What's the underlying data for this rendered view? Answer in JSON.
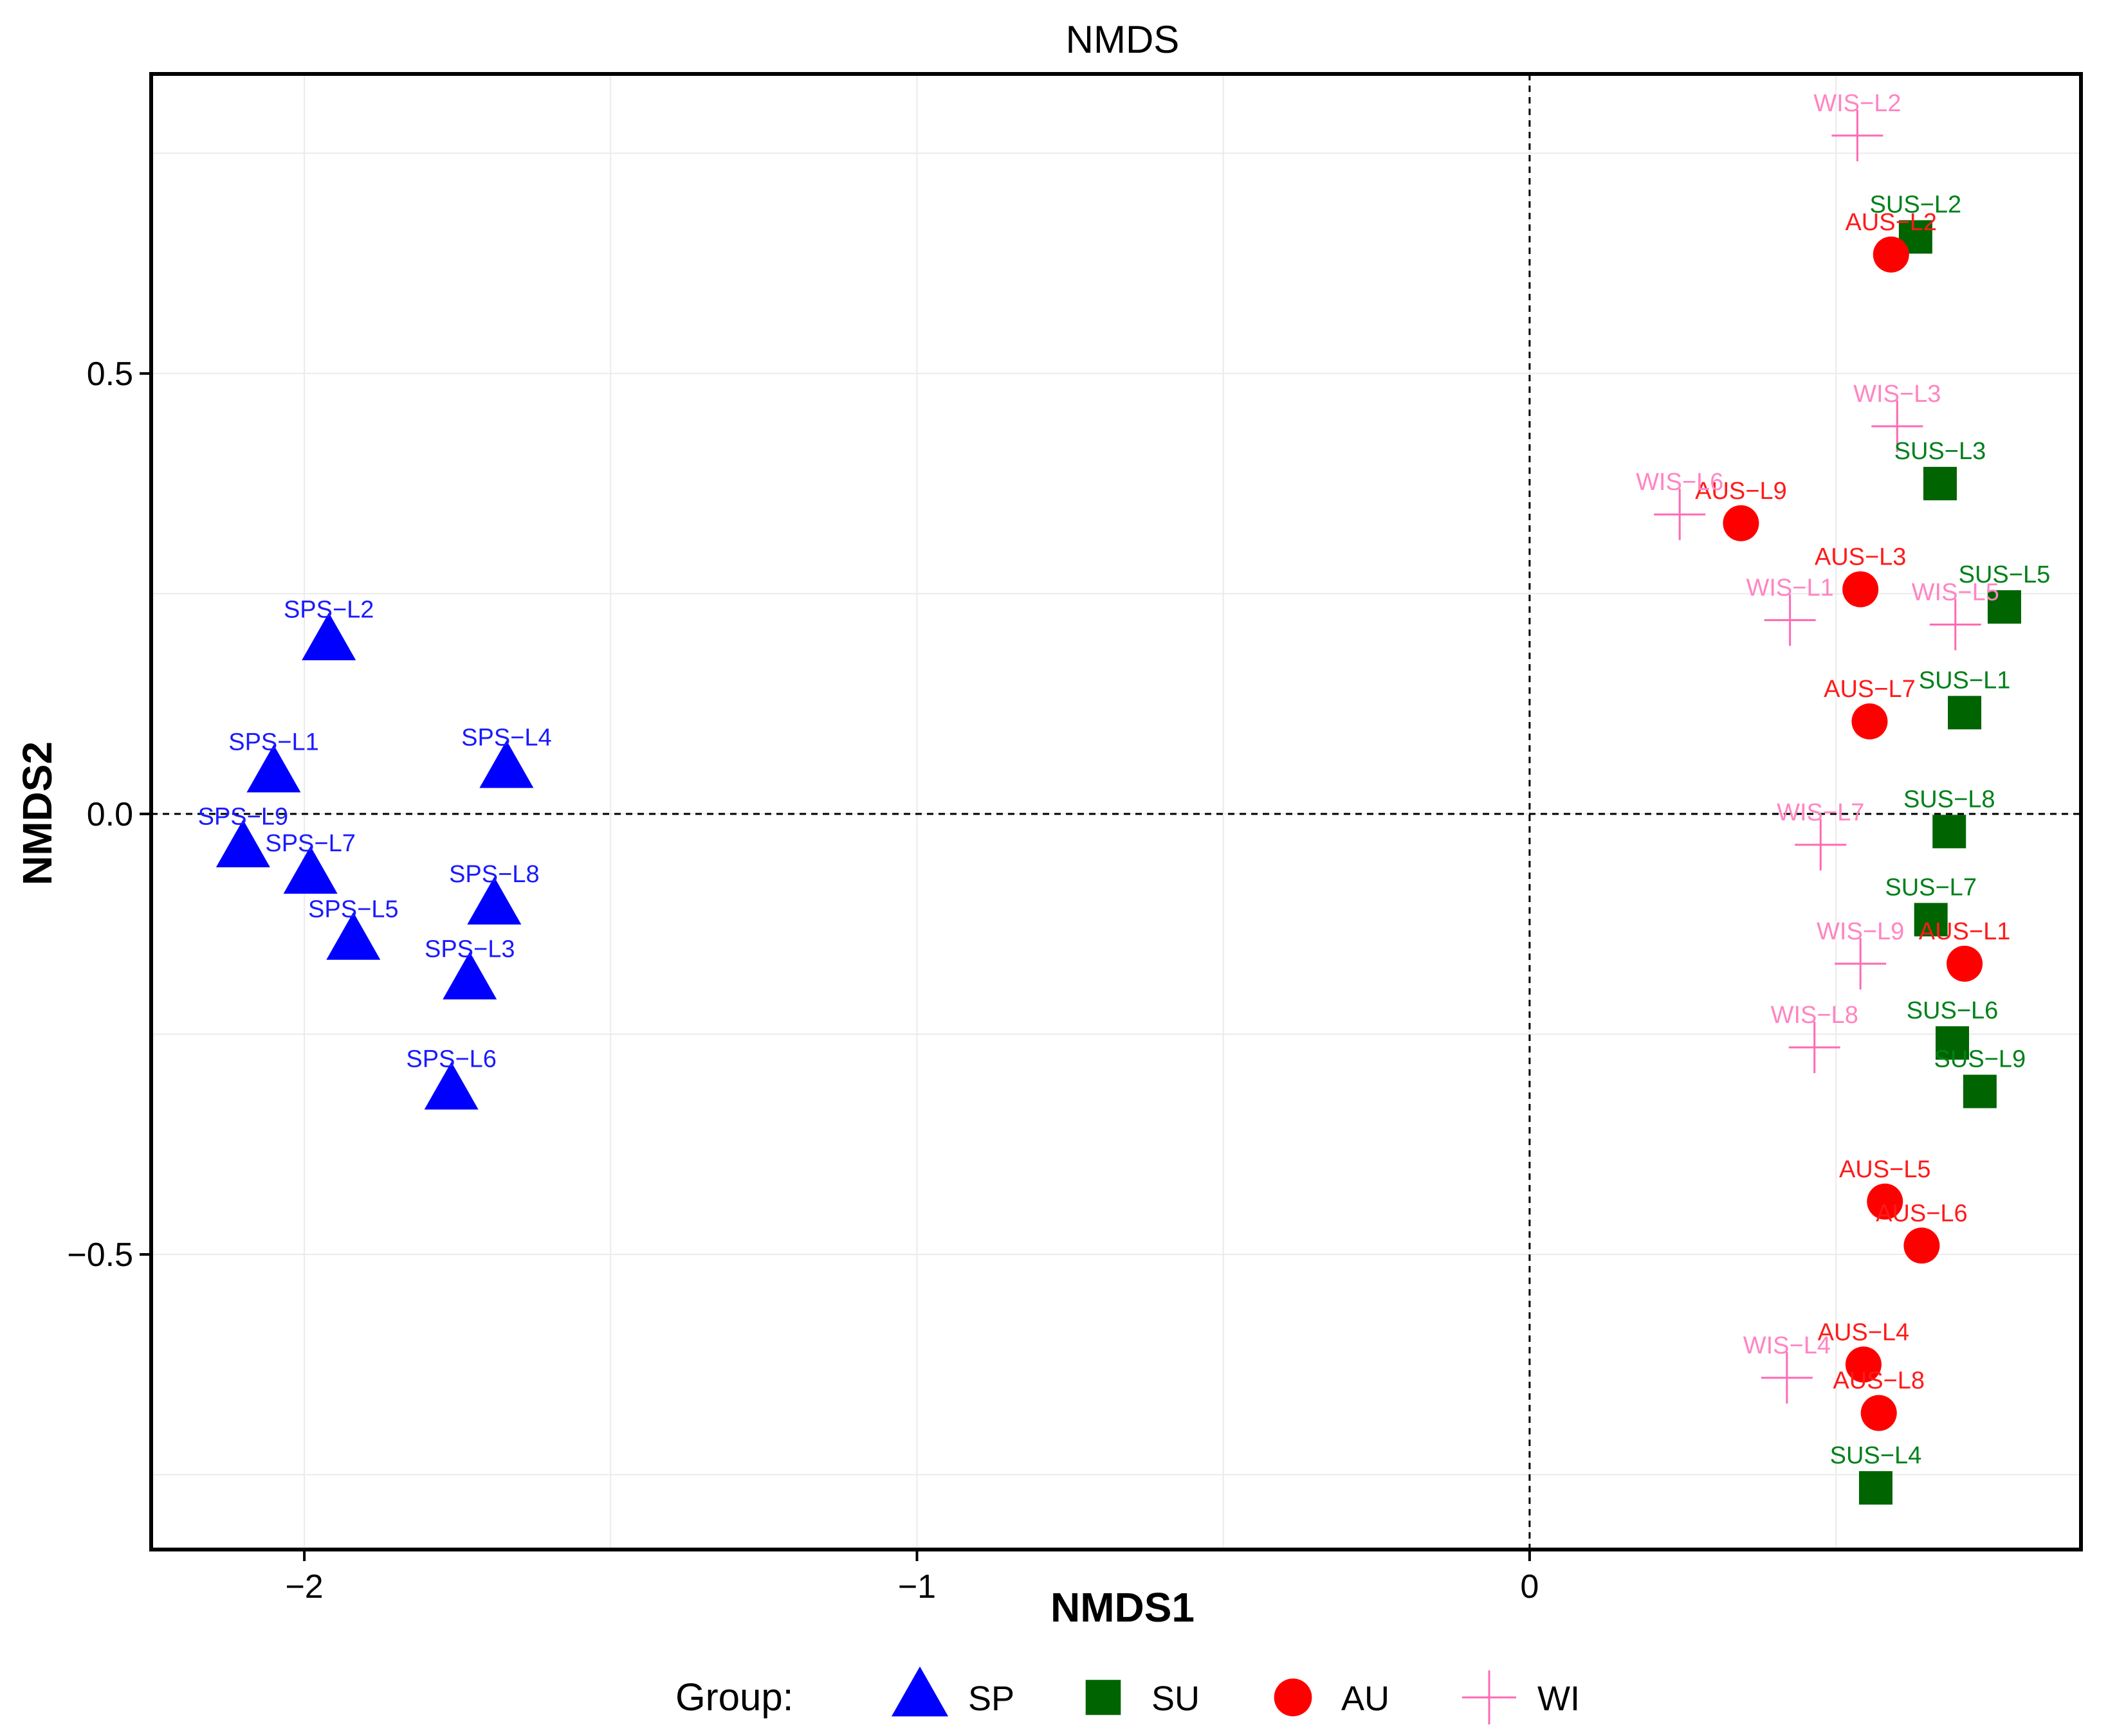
{
  "chart_data": {
    "type": "scatter",
    "title": "NMDS",
    "xlabel": "NMDS1",
    "ylabel": "NMDS2",
    "xlim": [
      -2.25,
      0.9
    ],
    "ylim": [
      -0.835,
      0.84
    ],
    "xticks": [
      -2,
      -1,
      0
    ],
    "yticks": [
      -0.5,
      0.0,
      0.5
    ],
    "xtick_labels": [
      "−2",
      "−1",
      "0"
    ],
    "ytick_labels": [
      "−0.5",
      "0.0",
      "0.5"
    ],
    "grid": true,
    "reference_lines": {
      "x": 0,
      "y": 0,
      "style": "dashed"
    },
    "legend": {
      "title": "Group:",
      "position": "bottom",
      "entries": [
        {
          "label": "SP",
          "shape": "triangle",
          "color": "#0000FF"
        },
        {
          "label": "SU",
          "shape": "square",
          "color": "#006400"
        },
        {
          "label": "AU",
          "shape": "circle",
          "color": "#FF0000"
        },
        {
          "label": "WI",
          "shape": "cross",
          "color": "#FF69B4"
        }
      ]
    },
    "series": [
      {
        "name": "SP",
        "shape": "triangle",
        "color": "#0000FF",
        "label_color": "#1a1aff",
        "points": [
          {
            "label": "SPS−L1",
            "x": -2.05,
            "y": 0.045
          },
          {
            "label": "SPS−L2",
            "x": -1.96,
            "y": 0.195
          },
          {
            "label": "SPS−L3",
            "x": -1.73,
            "y": -0.19
          },
          {
            "label": "SPS−L4",
            "x": -1.67,
            "y": 0.05
          },
          {
            "label": "SPS−L5",
            "x": -1.92,
            "y": -0.145
          },
          {
            "label": "SPS−L6",
            "x": -1.76,
            "y": -0.315
          },
          {
            "label": "SPS−L7",
            "x": -1.99,
            "y": -0.07
          },
          {
            "label": "SPS−L8",
            "x": -1.69,
            "y": -0.105
          },
          {
            "label": "SPS−L9",
            "x": -2.1,
            "y": -0.04
          }
        ]
      },
      {
        "name": "SU",
        "shape": "square",
        "color": "#006400",
        "label_color": "#00801a",
        "points": [
          {
            "label": "SUS−L1",
            "x": 0.71,
            "y": 0.115
          },
          {
            "label": "SUS−L2",
            "x": 0.63,
            "y": 0.655
          },
          {
            "label": "SUS−L3",
            "x": 0.67,
            "y": 0.375
          },
          {
            "label": "SUS−L4",
            "x": 0.565,
            "y": -0.765
          },
          {
            "label": "SUS−L5",
            "x": 0.775,
            "y": 0.235
          },
          {
            "label": "SUS−L6",
            "x": 0.69,
            "y": -0.26
          },
          {
            "label": "SUS−L7",
            "x": 0.655,
            "y": -0.12
          },
          {
            "label": "SUS−L8",
            "x": 0.685,
            "y": -0.02
          },
          {
            "label": "SUS−L9",
            "x": 0.735,
            "y": -0.315
          }
        ]
      },
      {
        "name": "AU",
        "shape": "circle",
        "color": "#FF0000",
        "label_color": "#ff1a1a",
        "points": [
          {
            "label": "AUS−L1",
            "x": 0.71,
            "y": -0.17
          },
          {
            "label": "AUS−L2",
            "x": 0.59,
            "y": 0.635
          },
          {
            "label": "AUS−L3",
            "x": 0.54,
            "y": 0.255
          },
          {
            "label": "AUS−L4",
            "x": 0.545,
            "y": -0.625
          },
          {
            "label": "AUS−L5",
            "x": 0.58,
            "y": -0.44
          },
          {
            "label": "AUS−L6",
            "x": 0.64,
            "y": -0.49
          },
          {
            "label": "AUS−L7",
            "x": 0.555,
            "y": 0.105
          },
          {
            "label": "AUS−L8",
            "x": 0.57,
            "y": -0.68
          },
          {
            "label": "AUS−L9",
            "x": 0.345,
            "y": 0.33
          }
        ]
      },
      {
        "name": "WI",
        "shape": "cross",
        "color": "#FF69B4",
        "label_color": "#ff85c2",
        "points": [
          {
            "label": "WIS−L1",
            "x": 0.425,
            "y": 0.22
          },
          {
            "label": "WIS−L2",
            "x": 0.535,
            "y": 0.77
          },
          {
            "label": "WIS−L3",
            "x": 0.6,
            "y": 0.44
          },
          {
            "label": "WIS−L4",
            "x": 0.42,
            "y": -0.64
          },
          {
            "label": "WIS−L5",
            "x": 0.695,
            "y": 0.215
          },
          {
            "label": "WIS−L6",
            "x": 0.245,
            "y": 0.34
          },
          {
            "label": "WIS−L7",
            "x": 0.475,
            "y": -0.035
          },
          {
            "label": "WIS−L8",
            "x": 0.465,
            "y": -0.265
          },
          {
            "label": "WIS−L9",
            "x": 0.54,
            "y": -0.17
          }
        ]
      }
    ]
  }
}
